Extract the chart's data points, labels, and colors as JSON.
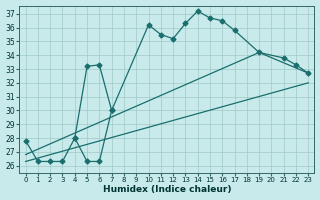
{
  "xlabel": "Humidex (Indice chaleur)",
  "bg_color": "#c8eaea",
  "line_color": "#1a6e6e",
  "grid_color": "#a0c8c8",
  "ylim": [
    25.5,
    37.6
  ],
  "xlim": [
    -0.5,
    23.5
  ],
  "yticks": [
    26,
    27,
    28,
    29,
    30,
    31,
    32,
    33,
    34,
    35,
    36,
    37
  ],
  "xticks": [
    0,
    1,
    2,
    3,
    4,
    5,
    6,
    7,
    8,
    9,
    10,
    11,
    12,
    13,
    14,
    15,
    16,
    17,
    18,
    19,
    20,
    21,
    22,
    23
  ],
  "series": [
    {
      "x": [
        0,
        1,
        2,
        3,
        4,
        5,
        6,
        7,
        10,
        11,
        12,
        13,
        14,
        15,
        16,
        17,
        19,
        21,
        22,
        23
      ],
      "y": [
        27.8,
        26.3,
        26.3,
        26.3,
        28.0,
        33.2,
        33.3,
        30.0,
        36.2,
        35.5,
        35.2,
        36.3,
        37.2,
        36.7,
        36.5,
        35.8,
        34.2,
        33.8,
        33.3,
        32.7
      ]
    },
    {
      "x": [
        4,
        5,
        6,
        7
      ],
      "y": [
        28.0,
        26.3,
        26.3,
        30.0
      ]
    },
    {
      "x": [
        0,
        23
      ],
      "y": [
        26.3,
        32.0
      ]
    },
    {
      "x": [
        0,
        19,
        23
      ],
      "y": [
        26.8,
        34.2,
        32.7
      ]
    }
  ]
}
